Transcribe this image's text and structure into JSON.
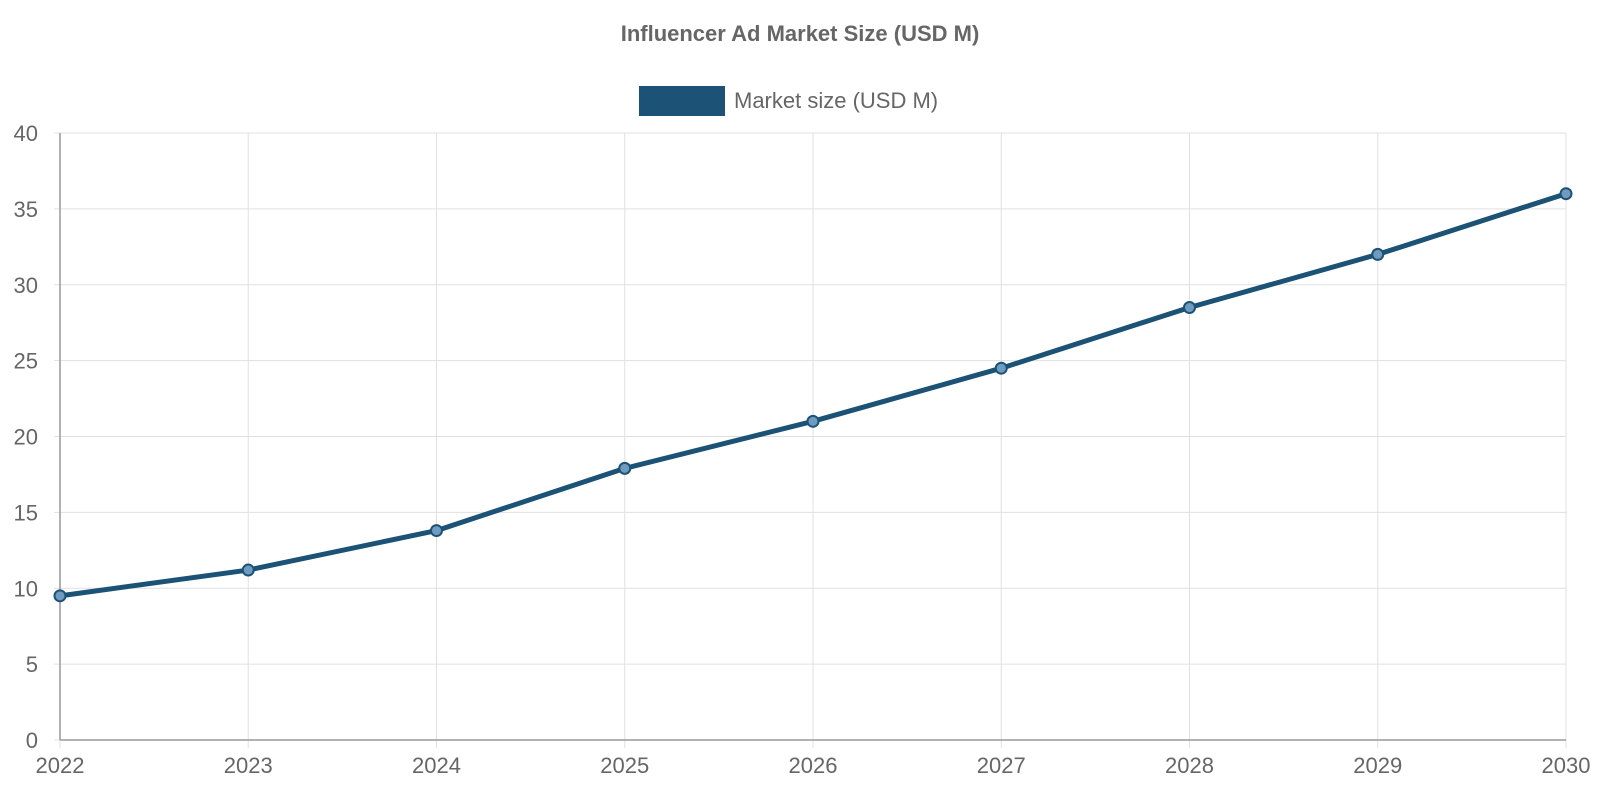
{
  "chart_data": {
    "type": "line",
    "title": "Influencer Ad Market Size (USD M)",
    "x": [
      "2022",
      "2023",
      "2024",
      "2025",
      "2026",
      "2027",
      "2028",
      "2029",
      "2030"
    ],
    "series": [
      {
        "name": "Market size (USD M)",
        "values": [
          9.5,
          11.2,
          13.8,
          17.9,
          21.0,
          24.5,
          28.5,
          32.0,
          36.0
        ],
        "color": "#1b5276",
        "point_fill": "#6f9bc0"
      }
    ],
    "ylim": [
      0,
      40
    ],
    "yticks": [
      0,
      5,
      10,
      15,
      20,
      25,
      30,
      35,
      40
    ],
    "grid": true,
    "legend_position": "top-center",
    "xlabel": "",
    "ylabel": ""
  }
}
